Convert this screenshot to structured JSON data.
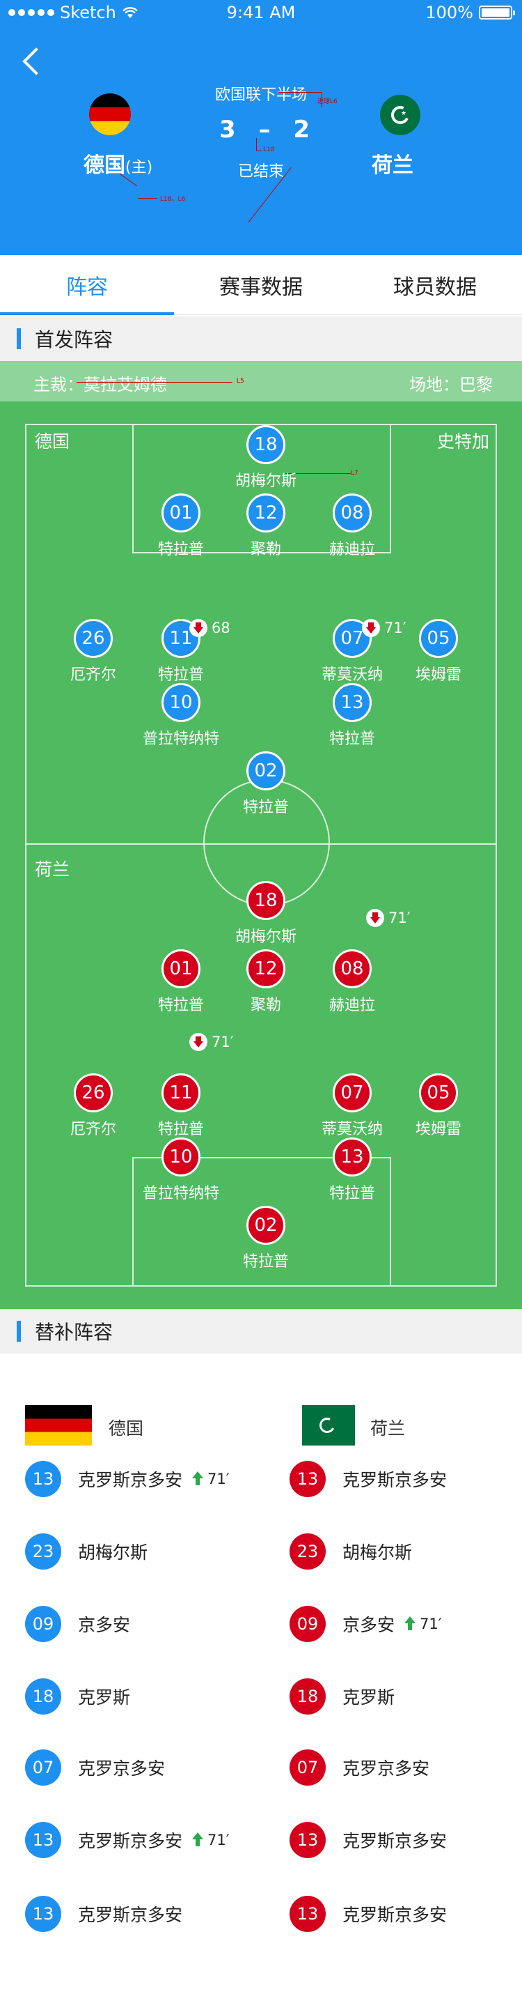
{
  "status_bar": {
    "carrier": "Sketch",
    "time": "9:41 AM",
    "battery": "100%"
  },
  "header": {
    "stage": "欧国联下半场",
    "home_team": "德国",
    "home_tag": "(主)",
    "away_team": "荷兰",
    "home_score": "3",
    "separator": "–",
    "away_score": "2",
    "status": "已结束",
    "colors": {
      "background": "#1e90f0"
    }
  },
  "annotations": {
    "a1": "L18、L6",
    "a2": "L18",
    "a3": "进球L6",
    "a4": "L5",
    "a5": "L7"
  },
  "tabs": [
    {
      "label": "阵容",
      "active": true
    },
    {
      "label": "赛事数据",
      "active": false
    },
    {
      "label": "球员数据",
      "active": false
    }
  ],
  "lineup": {
    "section_title": "首发阵容",
    "coach": "主裁：莫拉艾姆德",
    "venue": "场地：巴黎",
    "home_label": "德国",
    "formation_label": "史特加",
    "away_label": "荷兰",
    "home_players": [
      {
        "num": "18",
        "name": "胡梅尔斯"
      },
      {
        "num": "01",
        "name": "特拉普"
      },
      {
        "num": "12",
        "name": "聚勒"
      },
      {
        "num": "08",
        "name": "赫迪拉"
      },
      {
        "num": "26",
        "name": "厄齐尔"
      },
      {
        "num": "11",
        "name": "特拉普"
      },
      {
        "num": "07",
        "name": "蒂莫沃纳"
      },
      {
        "num": "05",
        "name": "埃姆雷"
      },
      {
        "num": "10",
        "name": "普拉特纳特"
      },
      {
        "num": "13",
        "name": "特拉普"
      },
      {
        "num": "02",
        "name": "特拉普"
      }
    ],
    "away_players": [
      {
        "num": "18",
        "name": "胡梅尔斯"
      },
      {
        "num": "01",
        "name": "特拉普"
      },
      {
        "num": "12",
        "name": "聚勒"
      },
      {
        "num": "08",
        "name": "赫迪拉"
      },
      {
        "num": "26",
        "name": "厄齐尔"
      },
      {
        "num": "11",
        "name": "特拉普"
      },
      {
        "num": "07",
        "name": "蒂莫沃纳"
      },
      {
        "num": "05",
        "name": "埃姆雷"
      },
      {
        "num": "10",
        "name": "普拉特纳特"
      },
      {
        "num": "13",
        "name": "特拉普"
      },
      {
        "num": "02",
        "name": "特拉普"
      }
    ],
    "sub_markers": {
      "home_11": "68",
      "home_07": "71′",
      "away_a": "71′",
      "away_b": "71′"
    },
    "colors": {
      "pitch": "#4fba5f",
      "home": "#1e90f0",
      "away": "#d4001c"
    }
  },
  "subs": {
    "section_title": "替补阵容",
    "home_team": "德国",
    "away_team": "荷兰",
    "rows": [
      {
        "home": {
          "num": "13",
          "name": "克罗斯京多安",
          "on": "71′"
        },
        "away": {
          "num": "13",
          "name": "克罗斯京多安",
          "on": ""
        }
      },
      {
        "home": {
          "num": "23",
          "name": "胡梅尔斯",
          "on": ""
        },
        "away": {
          "num": "23",
          "name": "胡梅尔斯",
          "on": ""
        }
      },
      {
        "home": {
          "num": "09",
          "name": "京多安",
          "on": ""
        },
        "away": {
          "num": "09",
          "name": "京多安",
          "on": "71′"
        }
      },
      {
        "home": {
          "num": "18",
          "name": "克罗斯",
          "on": ""
        },
        "away": {
          "num": "18",
          "name": "克罗斯",
          "on": ""
        }
      },
      {
        "home": {
          "num": "07",
          "name": "克罗京多安",
          "on": ""
        },
        "away": {
          "num": "07",
          "name": "克罗京多安",
          "on": ""
        }
      },
      {
        "home": {
          "num": "13",
          "name": "克罗斯京多安",
          "on": "71′"
        },
        "away": {
          "num": "13",
          "name": "克罗斯京多安",
          "on": ""
        }
      },
      {
        "home": {
          "num": "13",
          "name": "克罗斯京多安",
          "on": ""
        },
        "away": {
          "num": "13",
          "name": "克罗斯京多安",
          "on": ""
        }
      }
    ]
  }
}
